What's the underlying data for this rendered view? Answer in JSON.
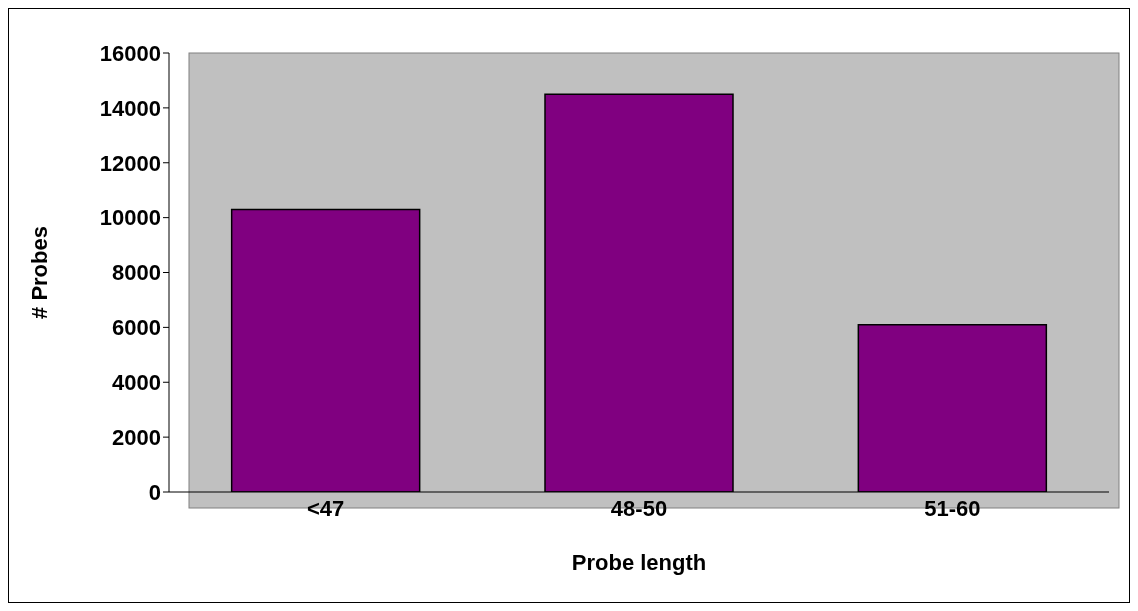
{
  "chart_data": {
    "type": "bar",
    "xlabel": "Probe length",
    "ylabel": "# Probes",
    "categories": [
      "<47",
      "48-50",
      "51-60"
    ],
    "values": [
      10300,
      14500,
      6100
    ],
    "color": "#800080",
    "ylim": [
      0,
      16000
    ],
    "yticks": [
      0,
      2000,
      4000,
      6000,
      8000,
      10000,
      12000,
      14000,
      16000
    ],
    "grid": false,
    "legend": false
  }
}
